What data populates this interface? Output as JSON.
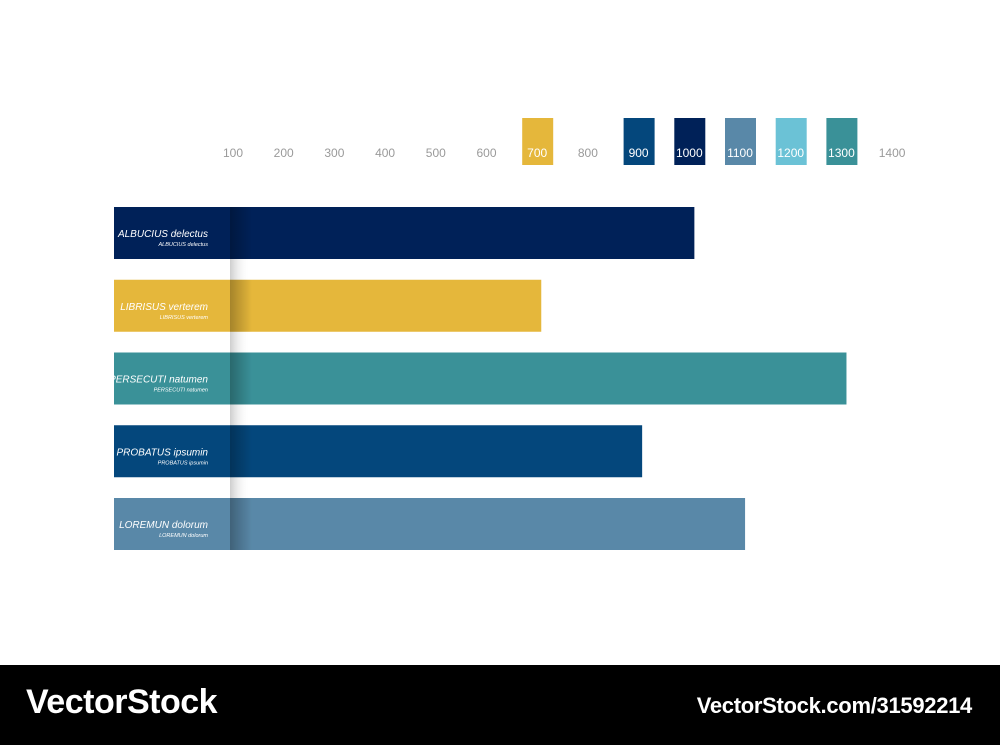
{
  "chart_data": {
    "type": "bar",
    "orientation": "horizontal",
    "ticks": [
      "100",
      "200",
      "300",
      "400",
      "500",
      "600",
      "700",
      "800",
      "900",
      "1000",
      "1100",
      "1200",
      "1300",
      "1400"
    ],
    "highlighted_ticks": [
      {
        "label": "700",
        "color": "#e5b73b"
      },
      {
        "label": "900",
        "color": "#04477c"
      },
      {
        "label": "1000",
        "color": "#002158"
      },
      {
        "label": "1100",
        "color": "#5988a8"
      },
      {
        "label": "1200",
        "color": "#6bc2d6"
      },
      {
        "label": "1300",
        "color": "#3a9198"
      }
    ],
    "xlim": [
      0,
      1400
    ],
    "bars": [
      {
        "label_bold": "ALBUCIUS",
        "label_rest": "delectus",
        "value": 1010,
        "color": "#002158"
      },
      {
        "label_bold": "LIBRISUS",
        "label_rest": "verterem",
        "value": 708,
        "color": "#e5b73b"
      },
      {
        "label_bold": "PERSECUTI",
        "label_rest": "natumen",
        "value": 1310,
        "color": "#3a9198"
      },
      {
        "label_bold": "PROBATUS",
        "label_rest": "ipsumin",
        "value": 907,
        "color": "#04477c"
      },
      {
        "label_bold": "LOREMUN",
        "label_rest": "dolorum",
        "value": 1110,
        "color": "#5988a8"
      }
    ],
    "title": "",
    "xlabel": "",
    "ylabel": "",
    "grid": false,
    "legend": "none"
  },
  "footer": {
    "brand": "VectorStock",
    "id_text": "VectorStock.com/31592214"
  }
}
